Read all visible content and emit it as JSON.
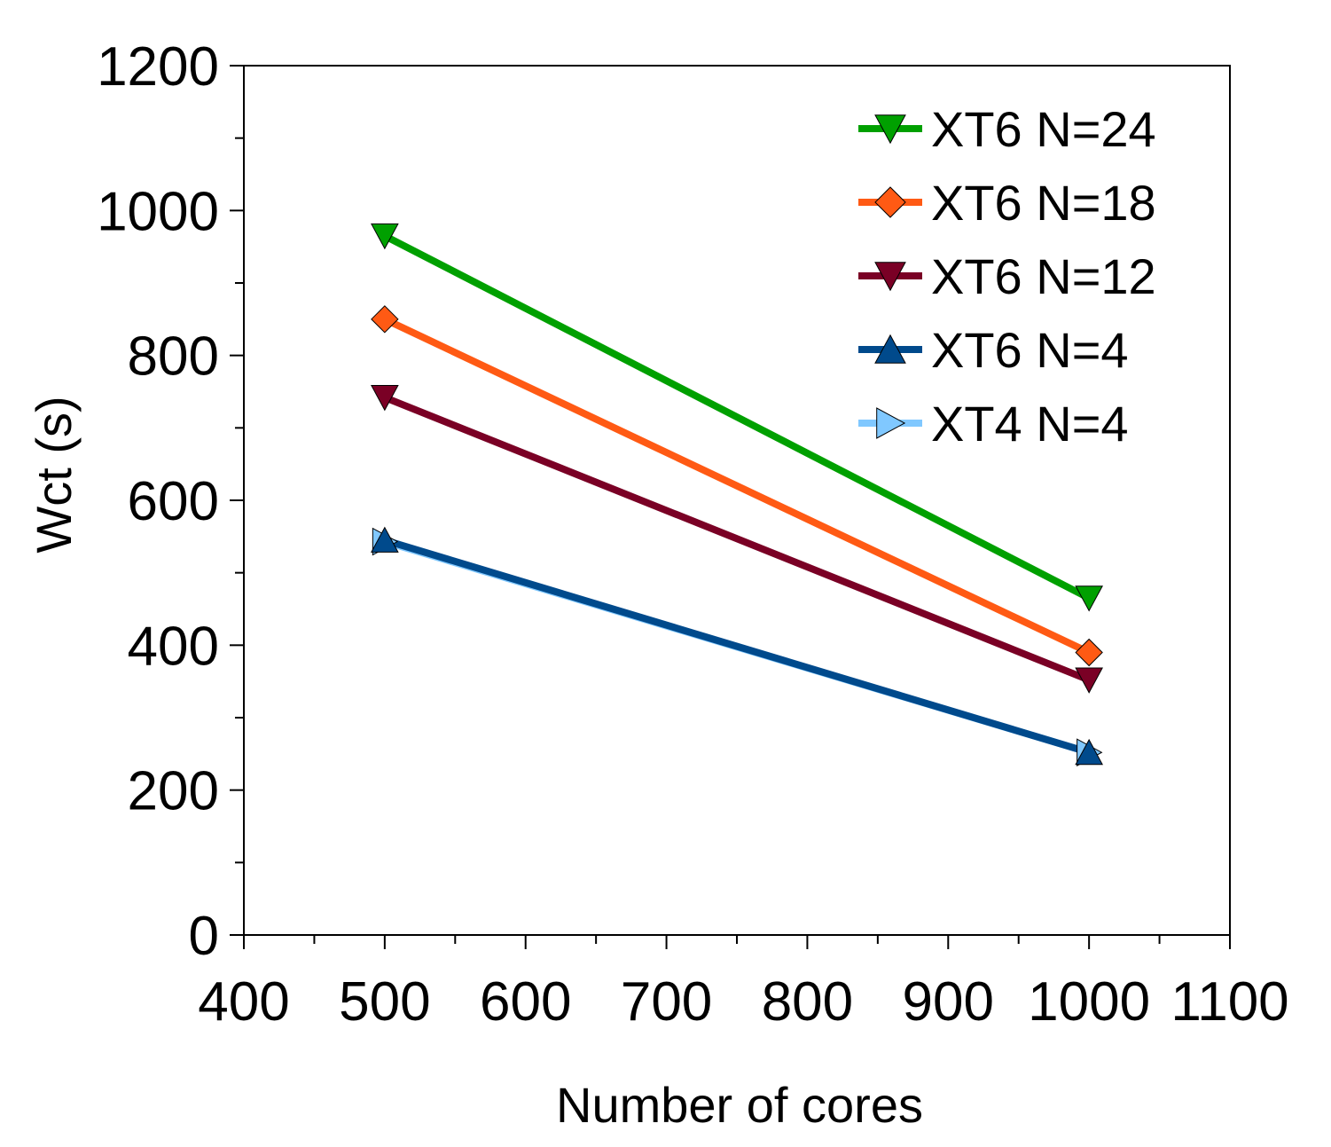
{
  "chart_data": {
    "type": "line",
    "title": "",
    "xlabel": "Number of cores",
    "ylabel": "Wct (s)",
    "xlim": [
      400,
      1100
    ],
    "ylim": [
      0,
      1200
    ],
    "x_ticks": [
      400,
      500,
      600,
      700,
      800,
      900,
      1000,
      1100
    ],
    "x_tick_labels": [
      "400",
      "500",
      "600",
      "700",
      "800",
      "900",
      "1000",
      "1100"
    ],
    "y_ticks": [
      0,
      200,
      400,
      600,
      800,
      1000,
      1200
    ],
    "y_tick_labels": [
      "0",
      "200",
      "400",
      "600",
      "800",
      "1000",
      "1200"
    ],
    "grid": false,
    "legend_position": "top-right",
    "series": [
      {
        "name": "XT6 N=24",
        "color": "#00a000",
        "marker": "triangle-down",
        "x": [
          500,
          1000
        ],
        "y": [
          965,
          465
        ]
      },
      {
        "name": "XT6 N=18",
        "color": "#ff5a14",
        "marker": "diamond",
        "x": [
          500,
          1000
        ],
        "y": [
          850,
          390
        ]
      },
      {
        "name": "XT6 N=12",
        "color": "#7a0025",
        "marker": "triangle-down",
        "x": [
          500,
          1000
        ],
        "y": [
          742,
          352
        ]
      },
      {
        "name": "XT6 N=4",
        "color": "#004a8c",
        "marker": "triangle-up",
        "x": [
          500,
          1000
        ],
        "y": [
          545,
          252
        ]
      },
      {
        "name": "XT4 N=4",
        "color": "#80c8ff",
        "marker": "triangle-right",
        "x": [
          500,
          1000
        ],
        "y": [
          543,
          252
        ]
      }
    ]
  }
}
